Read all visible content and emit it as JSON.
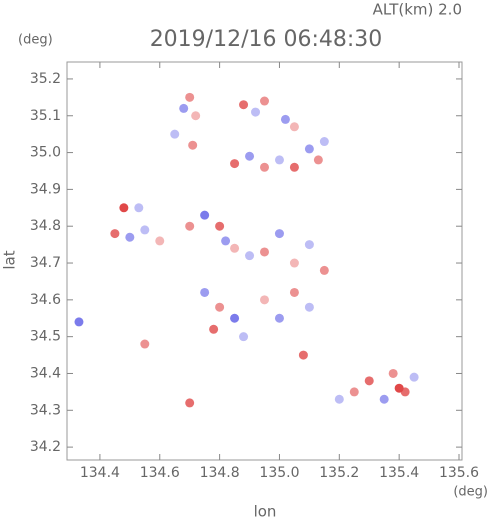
{
  "chart_data": {
    "type": "scatter",
    "title": "2019/12/16 06:48:30",
    "annotation": "ALT(km) 2.0",
    "y_unit": "(deg)",
    "x_unit": "(deg)",
    "xlabel": "lon",
    "ylabel": "lat",
    "xlim": [
      134.29,
      135.61
    ],
    "ylim": [
      34.165,
      35.246
    ],
    "xticks": [
      134.4,
      134.6,
      134.8,
      {
        "value": 135.0,
        "label": "135.0"
      },
      135.2,
      135.4,
      135.6
    ],
    "yticks": [
      34.2,
      34.3,
      34.4,
      34.5,
      34.6,
      34.7,
      34.8,
      34.9,
      {
        "value": 35.0,
        "label": "35.0"
      },
      35.1,
      35.2
    ],
    "color_positive": "#e04848",
    "color_negative": "#5a5ae6",
    "x": [
      134.7,
      134.68,
      134.72,
      134.88,
      134.92,
      134.95,
      135.02,
      135.05,
      134.65,
      134.71,
      134.85,
      134.9,
      134.95,
      135.0,
      135.05,
      135.1,
      135.13,
      135.15,
      134.48,
      134.45,
      134.5,
      134.55,
      134.6,
      134.7,
      134.75,
      134.8,
      134.82,
      134.85,
      134.9,
      134.95,
      135.0,
      135.05,
      135.1,
      135.15,
      134.53,
      134.75,
      134.8,
      134.85,
      134.78,
      134.88,
      134.95,
      135.0,
      135.05,
      135.1,
      134.33,
      134.55,
      134.7,
      135.08,
      135.2,
      135.25,
      135.3,
      135.35,
      135.4,
      135.45,
      135.38,
      135.42
    ],
    "y": [
      35.15,
      35.12,
      35.1,
      35.13,
      35.11,
      35.14,
      35.09,
      35.07,
      35.05,
      35.02,
      34.97,
      34.99,
      34.96,
      34.98,
      34.96,
      35.01,
      34.98,
      35.03,
      34.85,
      34.78,
      34.77,
      34.79,
      34.76,
      34.8,
      34.83,
      34.8,
      34.76,
      34.74,
      34.72,
      34.73,
      34.78,
      34.7,
      34.75,
      34.68,
      34.85,
      34.62,
      34.58,
      34.55,
      34.52,
      34.5,
      34.6,
      34.55,
      34.62,
      34.58,
      34.54,
      34.48,
      34.32,
      34.45,
      34.33,
      34.35,
      34.38,
      34.33,
      34.36,
      34.39,
      34.4,
      34.35
    ],
    "values": [
      3,
      -3,
      2,
      4,
      -2,
      3,
      -3,
      2,
      -2,
      3,
      4,
      -3,
      3,
      -2,
      4,
      -3,
      3,
      -2,
      5,
      4,
      -3,
      -2,
      2,
      3,
      -4,
      4,
      -3,
      2,
      -2,
      3,
      -3,
      2,
      -2,
      3,
      -2,
      -3,
      3,
      -4,
      4,
      -2,
      2,
      -3,
      3,
      -2,
      -4,
      3,
      4,
      4,
      -2,
      3,
      4,
      -3,
      5,
      -2,
      3,
      4
    ]
  }
}
